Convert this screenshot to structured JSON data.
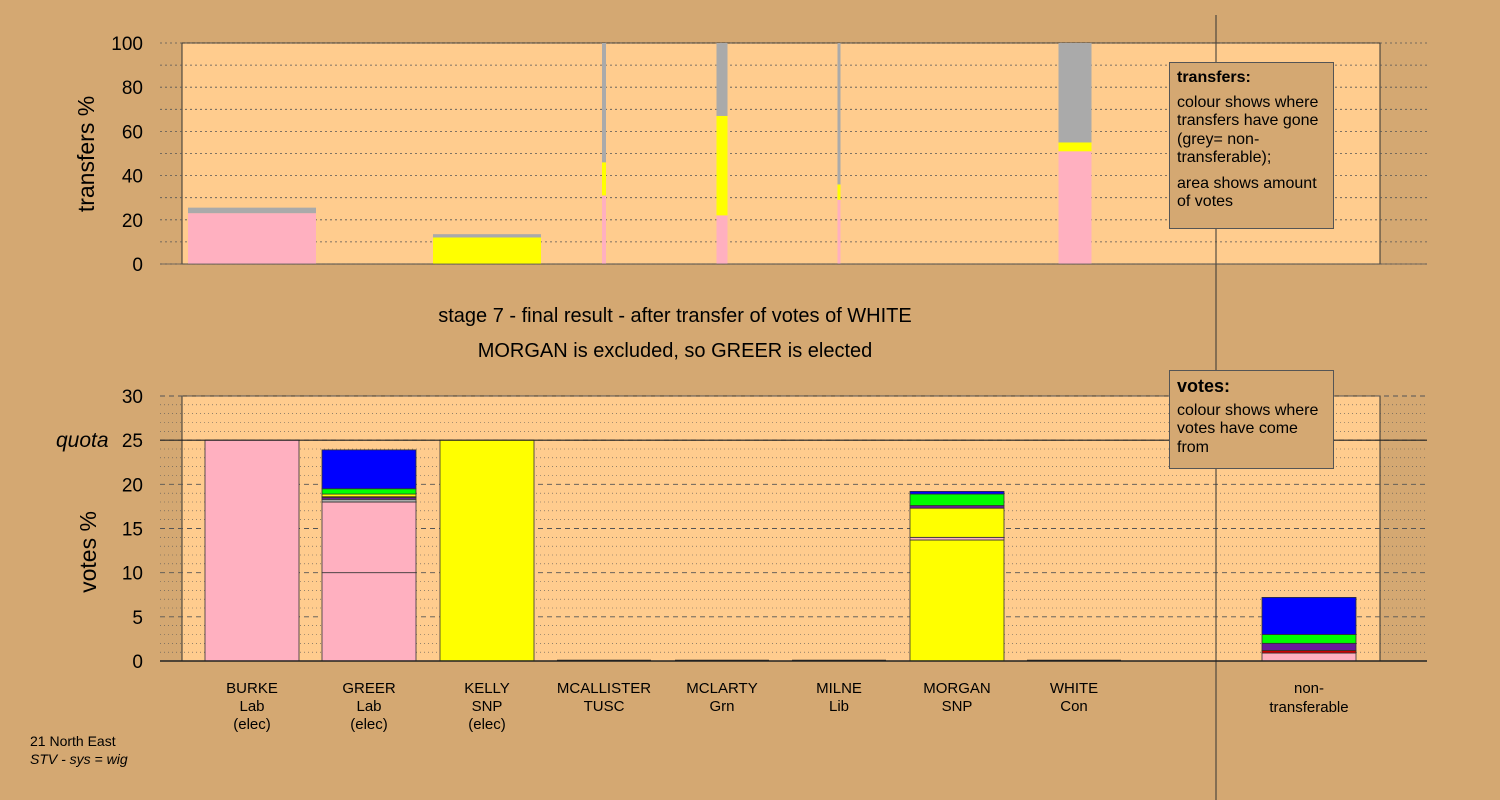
{
  "title_line1": "stage 7 - final result - after transfer of votes of WHITE",
  "title_line2": "MORGAN is excluded, so GREER is elected",
  "legend_transfers": {
    "title": "transfers:",
    "text1": "colour shows where transfers have gone (grey= non-transferable);",
    "text2": "area shows amount of votes"
  },
  "legend_votes": {
    "title": "votes:",
    "text1": "colour shows where votes have come from"
  },
  "footer": {
    "region": "21 North East",
    "system": "STV - sys = wig"
  },
  "colors": {
    "Lab": "#ffb0c0",
    "SNP": "#ffff00",
    "Grn": "#00ff00",
    "Con": "#0000ff",
    "Lib": "#6a1b9a",
    "TUSC": "#cc0000",
    "nontransferable": "#aaaaaa",
    "plot_bg": "#ffcc8e",
    "page_bg": "#d4a872"
  },
  "chart_data": [
    {
      "type": "bar",
      "ylabel": "transfers %",
      "ylim": [
        0,
        100
      ],
      "yticks": [
        0,
        20,
        40,
        60,
        80,
        100
      ],
      "series_order": [
        "Lab",
        "SNP",
        "nontransferable"
      ],
      "columns": [
        {
          "candidate": "BURKE",
          "segments": [
            {
              "party": "Lab",
              "value": 23
            },
            {
              "party": "nontransferable",
              "value": 2.5
            }
          ]
        },
        {
          "candidate": "KELLY",
          "segments": [
            {
              "party": "SNP",
              "value": 12
            },
            {
              "party": "nontransferable",
              "value": 1.5
            }
          ]
        },
        {
          "candidate": "MCALLISTER",
          "segments": [
            {
              "party": "Lab",
              "value": 31
            },
            {
              "party": "SNP",
              "value": 15
            },
            {
              "party": "nontransferable",
              "value": 54
            }
          ]
        },
        {
          "candidate": "MCLARTY",
          "segments": [
            {
              "party": "Lab",
              "value": 22
            },
            {
              "party": "SNP",
              "value": 45
            },
            {
              "party": "nontransferable",
              "value": 33
            }
          ]
        },
        {
          "candidate": "MILNE",
          "segments": [
            {
              "party": "Lab",
              "value": 29
            },
            {
              "party": "SNP",
              "value": 7
            },
            {
              "party": "nontransferable",
              "value": 64
            }
          ]
        },
        {
          "candidate": "WHITE",
          "segments": [
            {
              "party": "Lab",
              "value": 51
            },
            {
              "party": "SNP",
              "value": 4
            },
            {
              "party": "nontransferable",
              "value": 45
            }
          ]
        }
      ]
    },
    {
      "type": "bar",
      "ylabel": "votes %",
      "ylim": [
        0,
        30
      ],
      "yticks": [
        0,
        5,
        10,
        15,
        20,
        25,
        30
      ],
      "quota": 25,
      "quota_label": "quota",
      "categories": [
        {
          "name": "BURKE",
          "party": "Lab",
          "status": "(elec)"
        },
        {
          "name": "GREER",
          "party": "Lab",
          "status": "(elec)"
        },
        {
          "name": "KELLY",
          "party": "SNP",
          "status": "(elec)"
        },
        {
          "name": "MCALLISTER",
          "party": "TUSC",
          "status": ""
        },
        {
          "name": "MCLARTY",
          "party": "Grn",
          "status": ""
        },
        {
          "name": "MILNE",
          "party": "Lib",
          "status": ""
        },
        {
          "name": "MORGAN",
          "party": "SNP",
          "status": ""
        },
        {
          "name": "WHITE",
          "party": "Con",
          "status": ""
        }
      ],
      "nontransferable_label": [
        "non-",
        "transferable"
      ],
      "stacks": [
        [
          {
            "party": "Lab",
            "value": 25
          }
        ],
        [
          {
            "party": "Lab",
            "value": 10
          },
          {
            "party": "Lab",
            "value": 8
          },
          {
            "party": "nontransferable",
            "value": 0.3
          },
          {
            "party": "Lib",
            "value": 0.2
          },
          {
            "party": "TUSC",
            "value": 0.1
          },
          {
            "party": "SNP",
            "value": 0.3
          },
          {
            "party": "Grn",
            "value": 0.6
          },
          {
            "party": "Con",
            "value": 4.4
          }
        ],
        [
          {
            "party": "SNP",
            "value": 25
          }
        ],
        [],
        [],
        [],
        [
          {
            "party": "SNP",
            "value": 13.7
          },
          {
            "party": "Lab",
            "value": 0.3
          },
          {
            "party": "SNP",
            "value": 3.3
          },
          {
            "party": "Lib",
            "value": 0.3
          },
          {
            "party": "Grn",
            "value": 1.3
          },
          {
            "party": "Con",
            "value": 0.3
          }
        ],
        [],
        [
          {
            "party": "Lab",
            "value": 0.9
          },
          {
            "party": "TUSC",
            "value": 0.3
          },
          {
            "party": "Lib",
            "value": 0.8
          },
          {
            "party": "Grn",
            "value": 1.0
          },
          {
            "party": "Con",
            "value": 4.2
          }
        ]
      ]
    }
  ]
}
